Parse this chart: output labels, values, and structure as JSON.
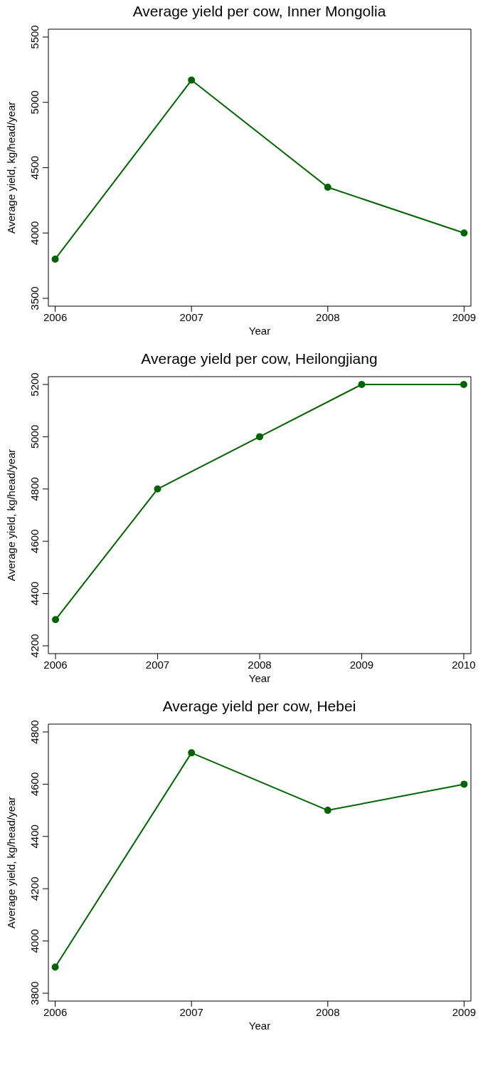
{
  "chart_data": [
    {
      "type": "line",
      "title": "Average yield per cow, Inner Mongolia",
      "xlabel": "Year",
      "ylabel": "Average yield, kg/head/year",
      "x": [
        2006,
        2007,
        2008,
        2009
      ],
      "series": [
        {
          "color": "#006400",
          "values": [
            3800,
            5170,
            4350,
            4000
          ]
        }
      ],
      "xlim": [
        2005.95,
        2009.05
      ],
      "xticks": [
        2006,
        2007,
        2008,
        2009
      ],
      "ylim": [
        3440,
        5560
      ],
      "yticks": [
        3500,
        4000,
        4500,
        5000,
        5500
      ],
      "grid": false,
      "legend": false,
      "marker": "circle",
      "line_style": "solid"
    },
    {
      "type": "line",
      "title": "Average yield per cow, Heilongjiang",
      "xlabel": "Year",
      "ylabel": "Average yield, kg/head/year",
      "x": [
        2006,
        2007,
        2008,
        2009,
        2010
      ],
      "series": [
        {
          "color": "#006400",
          "values": [
            4300,
            4800,
            5000,
            5200,
            5200
          ]
        }
      ],
      "xlim": [
        2005.93,
        2010.07
      ],
      "xticks": [
        2006,
        2007,
        2008,
        2009,
        2010
      ],
      "ylim": [
        4170,
        5230
      ],
      "yticks": [
        4200,
        4400,
        4600,
        4800,
        5000,
        5200
      ],
      "grid": false,
      "legend": false,
      "marker": "circle",
      "line_style": "solid"
    },
    {
      "type": "line",
      "title": "Average yield per cow, Hebei",
      "xlabel": "Year",
      "ylabel": "Average yield, kg/head/year",
      "x": [
        2006,
        2007,
        2008,
        2009
      ],
      "series": [
        {
          "color": "#006400",
          "values": [
            3900,
            4720,
            4500,
            4600
          ]
        }
      ],
      "xlim": [
        2005.95,
        2009.05
      ],
      "xticks": [
        2006,
        2007,
        2008,
        2009
      ],
      "ylim": [
        3770,
        4830
      ],
      "yticks": [
        3800,
        4000,
        4200,
        4400,
        4600,
        4800
      ],
      "grid": false,
      "legend": false,
      "marker": "circle",
      "line_style": "solid"
    }
  ]
}
